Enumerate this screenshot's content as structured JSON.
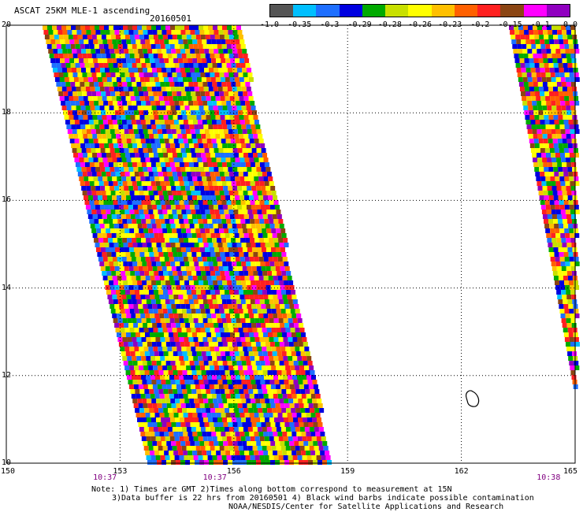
{
  "title": "ASCAT 25KM MLE-1 ascending",
  "date": "20160501",
  "colorbar": {
    "colors": [
      "#555555",
      "#00bfff",
      "#1e6fff",
      "#0000e0",
      "#00aa00",
      "#c8e000",
      "#ffff00",
      "#ffc000",
      "#ff6000",
      "#ff2020",
      "#8b4513",
      "#ff00ff",
      "#9000c0"
    ],
    "labels": [
      "-1.0",
      "-0.35",
      "-0.3",
      "-0.29",
      "-0.28",
      "-0.26",
      "-0.23",
      "-0.2",
      "-0.15",
      "-0.1",
      "0.0"
    ]
  },
  "axes": {
    "x_range": [
      150,
      165
    ],
    "y_range": [
      10,
      20
    ],
    "x_ticks": [
      "150",
      "153",
      "156",
      "159",
      "162",
      "165"
    ],
    "y_ticks": [
      "20",
      "18",
      "16",
      "14",
      "12",
      "10"
    ],
    "grid": "dotted"
  },
  "swath_times": [
    {
      "label": "10:37",
      "lon": 152.6
    },
    {
      "label": "10:37",
      "lon": 155.5
    },
    {
      "label": "10:38",
      "lon": 164.3
    }
  ],
  "notes": [
    "Note: 1) Times are GMT 2)Times along bottom correspond to measurement at 15N",
    "3)Data buffer is 22 hrs from 20160501 4) Black wind barbs indicate possible contamination",
    "NOAA/NESDIS/Center for Satellite Applications and Research"
  ]
}
